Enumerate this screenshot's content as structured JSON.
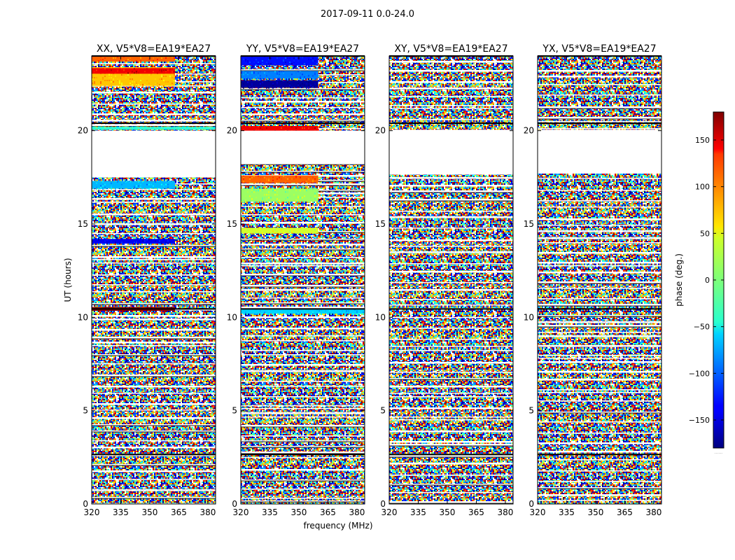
{
  "figure": {
    "title": "2017-09-11 0.0-24.0"
  },
  "chart_data": {
    "type": "heatmap",
    "suptitle": "2017-09-11 0.0-24.0",
    "xlabel": "frequency (MHz)",
    "ylabel": "UT (hours)",
    "xlim": [
      320,
      384
    ],
    "ylim": [
      0,
      24
    ],
    "x_ticks": [
      320,
      335,
      350,
      365,
      380
    ],
    "y_ticks": [
      0,
      5,
      10,
      15,
      20
    ],
    "colormap": "jet",
    "colorbar": {
      "label": "phase (deg.)",
      "range": [
        -180,
        180
      ],
      "ticks": [
        -150,
        -100,
        -50,
        0,
        50,
        100,
        150
      ],
      "tick_labels": [
        "−150",
        "−100",
        "−50",
        "0",
        "50",
        "100",
        "150"
      ],
      "extra_text": "......"
    },
    "panels": [
      {
        "title": "XX, V5*V8=EA19*EA27",
        "flagged_ranges": [
          [
            17.5,
            20.0
          ],
          [
            20.25,
            20.35
          ]
        ],
        "dark_lines": [
          2.65,
          10.45,
          20.4,
          24.0
        ],
        "coherent_bands": [
          {
            "y": [
              22.4,
              23.4
            ],
            "x": [
              320,
              363
            ],
            "phase": 65
          },
          {
            "y": [
              23.05,
              23.35
            ],
            "x": [
              320,
              363
            ],
            "phase": 140
          },
          {
            "y": [
              23.7,
              24.0
            ],
            "x": [
              320,
              363
            ],
            "phase": 100
          },
          {
            "y": [
              20.05,
              20.2
            ],
            "x": [
              320,
              384
            ],
            "phase": -30
          },
          {
            "y": [
              16.9,
              17.3
            ],
            "x": [
              320,
              363
            ],
            "phase": -70
          },
          {
            "y": [
              13.95,
              14.2
            ],
            "x": [
              320,
              363
            ],
            "phase": -140
          },
          {
            "y": [
              10.35,
              10.55
            ],
            "x": [
              320,
              363
            ],
            "phase": 175
          }
        ]
      },
      {
        "title": "YY, V5*V8=EA19*EA27",
        "flagged_ranges": [
          [
            18.2,
            20.0
          ]
        ],
        "dark_lines": [
          2.65,
          10.45,
          20.4,
          24.0
        ],
        "coherent_bands": [
          {
            "y": [
              22.3,
              22.7
            ],
            "x": [
              320,
              360
            ],
            "phase": -170
          },
          {
            "y": [
              22.8,
              23.2
            ],
            "x": [
              320,
              360
            ],
            "phase": -90
          },
          {
            "y": [
              23.5,
              24.0
            ],
            "x": [
              320,
              360
            ],
            "phase": -130
          },
          {
            "y": [
              19.95,
              20.25
            ],
            "x": [
              320,
              360
            ],
            "phase": 140
          },
          {
            "y": [
              17.2,
              17.6
            ],
            "x": [
              320,
              360
            ],
            "phase": 100
          },
          {
            "y": [
              16.2,
              16.9
            ],
            "x": [
              320,
              360
            ],
            "phase": 10
          },
          {
            "y": [
              14.5,
              14.8
            ],
            "x": [
              320,
              360
            ],
            "phase": 30
          },
          {
            "y": [
              10.2,
              10.45
            ],
            "x": [
              320,
              384
            ],
            "phase": -60
          }
        ]
      },
      {
        "title": "XY, V5*V8=EA19*EA27",
        "flagged_ranges": [
          [
            17.7,
            20.05
          ]
        ],
        "dark_lines": [
          2.65,
          10.45,
          20.4,
          24.0
        ],
        "coherent_bands": []
      },
      {
        "title": "YX, V5*V8=EA19*EA27",
        "flagged_ranges": [
          [
            17.7,
            20.05
          ]
        ],
        "dark_lines": [
          2.65,
          10.45,
          20.4,
          24.0
        ],
        "coherent_bands": []
      }
    ]
  }
}
